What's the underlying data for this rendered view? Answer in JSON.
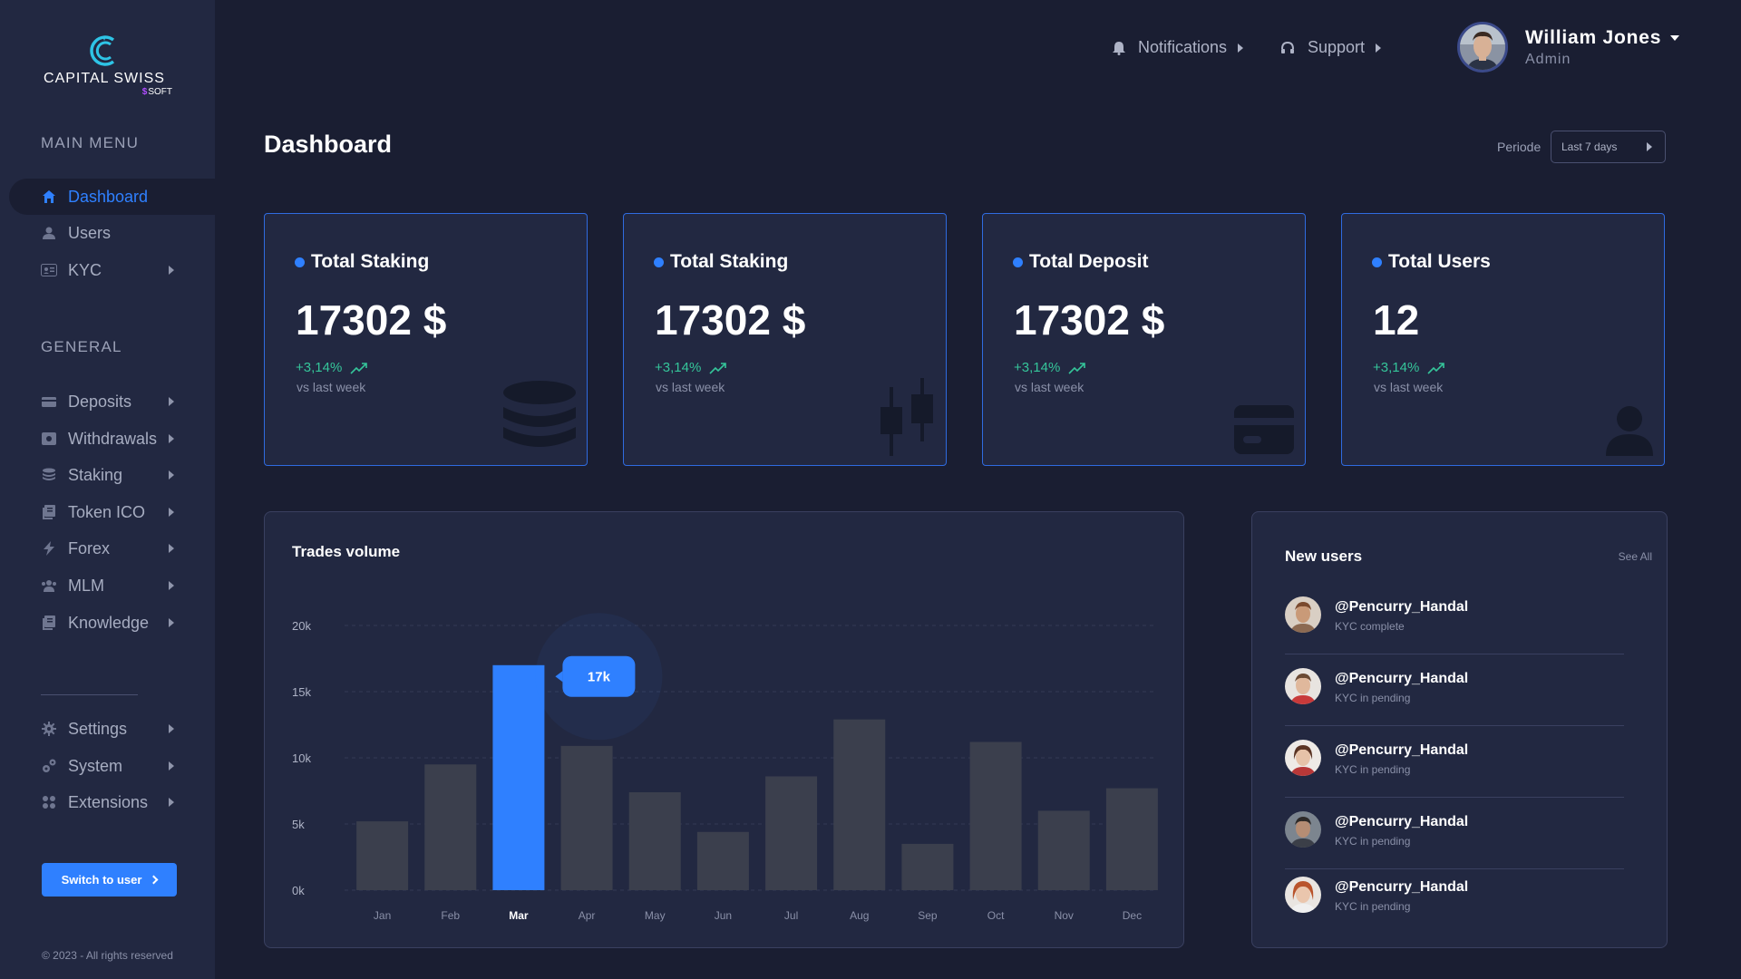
{
  "brand": {
    "name": "CAPITAL SWISS",
    "sub": "SOFT",
    "sub_prefix": "$"
  },
  "sidebar": {
    "main_heading": "MAIN MENU",
    "main_items": [
      {
        "label": "Dashboard",
        "icon": "home-icon",
        "active": true
      },
      {
        "label": "Users",
        "icon": "user-icon"
      },
      {
        "label": "KYC",
        "icon": "id-card-icon"
      }
    ],
    "general_heading": "GENERAL",
    "general_items": [
      {
        "label": "Deposits",
        "icon": "wallet-icon"
      },
      {
        "label": "Withdrawals",
        "icon": "safe-icon"
      },
      {
        "label": "Staking",
        "icon": "coins-icon"
      },
      {
        "label": "Token ICO",
        "icon": "document-icon"
      },
      {
        "label": "Forex",
        "icon": "bolt-icon"
      },
      {
        "label": "MLM",
        "icon": "users-icon"
      },
      {
        "label": "Knowledge",
        "icon": "book-icon"
      }
    ],
    "system_items": [
      {
        "label": "Settings",
        "icon": "gear-icon"
      },
      {
        "label": "System",
        "icon": "gears-icon"
      },
      {
        "label": "Extensions",
        "icon": "grid-icon"
      }
    ],
    "switch_label": "Switch to user",
    "copyright": "© 2023 - All rights reserved"
  },
  "header": {
    "notifications": "Notifications",
    "support": "Support",
    "user_name": "William Jones",
    "user_role": "Admin"
  },
  "page": {
    "title": "Dashboard",
    "period_label": "Periode",
    "period_value": "Last 7 days"
  },
  "cards": [
    {
      "title": "Total Staking",
      "value": "17302 $",
      "change": "+3,14%",
      "vs": "vs last week",
      "icon": "coins-stack-icon"
    },
    {
      "title": "Total Staking",
      "value": "17302 $",
      "change": "+3,14%",
      "vs": "vs last week",
      "icon": "candlestick-icon"
    },
    {
      "title": "Total Deposit",
      "value": "17302 $",
      "change": "+3,14%",
      "vs": "vs last week",
      "icon": "credit-card-icon"
    },
    {
      "title": "Total Users",
      "value": "12",
      "change": "+3,14%",
      "vs": "vs last week",
      "icon": "user-silhouette-icon"
    }
  ],
  "trades": {
    "title": "Trades volume",
    "tooltip": "17k"
  },
  "chart_data": {
    "type": "bar",
    "title": "Trades volume",
    "categories": [
      "Jan",
      "Feb",
      "Mar",
      "Apr",
      "May",
      "Jun",
      "Jul",
      "Aug",
      "Sep",
      "Oct",
      "Nov",
      "Dec"
    ],
    "values": [
      5200,
      9500,
      17000,
      10900,
      7400,
      4400,
      8600,
      12900,
      3500,
      11200,
      6000,
      7700
    ],
    "highlight": "Mar",
    "y_ticks": [
      "0k",
      "5k",
      "10k",
      "15k",
      "20k"
    ],
    "ylim": [
      0,
      20000
    ],
    "grid": true,
    "colors": {
      "bar": "#3b3f4d",
      "highlight": "#2f80ff"
    }
  },
  "new_users": {
    "title": "New users",
    "see_all": "See All",
    "items": [
      {
        "handle": "@Pencurry_Handal",
        "status": "KYC complete"
      },
      {
        "handle": "@Pencurry_Handal",
        "status": "KYC in pending"
      },
      {
        "handle": "@Pencurry_Handal",
        "status": "KYC in pending"
      },
      {
        "handle": "@Pencurry_Handal",
        "status": "KYC in pending"
      },
      {
        "handle": "@Pencurry_Handal",
        "status": "KYC in pending"
      }
    ]
  },
  "colors": {
    "accent": "#2f80ff",
    "positive": "#35c59a",
    "bg": "#1a1e32",
    "panel": "#222841"
  }
}
